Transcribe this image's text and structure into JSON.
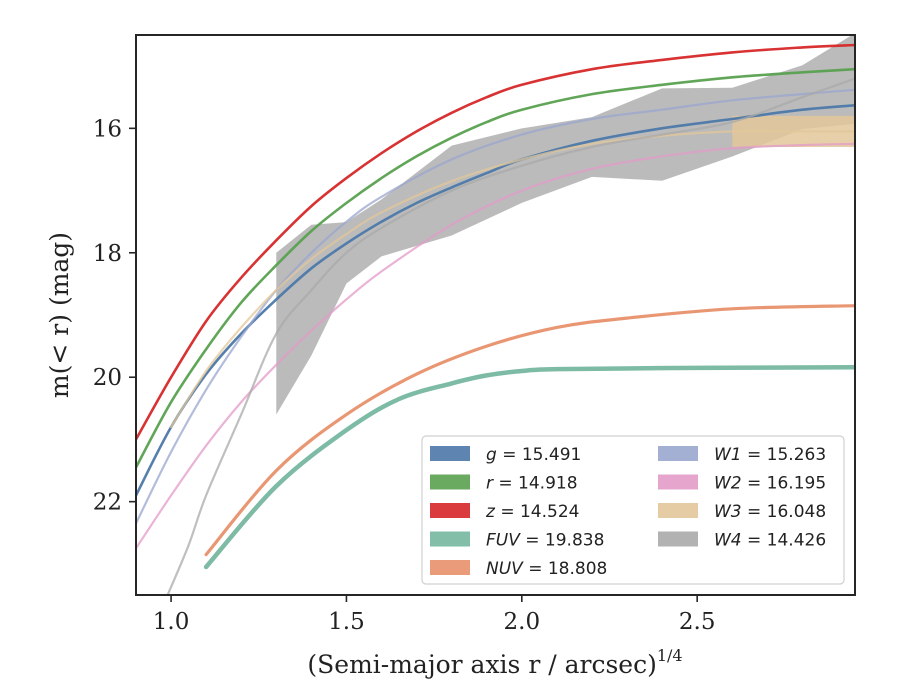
{
  "chart_data": {
    "type": "line",
    "xlabel": "(Semi-major axis r / arcsec)",
    "xlabel_superscript": "1/4",
    "ylabel": "m(< r) (mag)",
    "xlim": [
      0.9,
      2.95
    ],
    "ylim": [
      23.5,
      14.5
    ],
    "y_inverted": true,
    "xticks": [
      {
        "value": 1.0,
        "label": "1.0"
      },
      {
        "value": 1.5,
        "label": "1.5"
      },
      {
        "value": 2.0,
        "label": "2.0"
      },
      {
        "value": 2.5,
        "label": "2.5"
      }
    ],
    "yticks": [
      {
        "value": 16,
        "label": "16"
      },
      {
        "value": 18,
        "label": "18"
      },
      {
        "value": 20,
        "label": "20"
      },
      {
        "value": 22,
        "label": "22"
      }
    ],
    "grid": false,
    "legend_position": "lower-right",
    "series": [
      {
        "key": "g",
        "label_var": "g",
        "label_val": "15.491",
        "color": "#4c78a8",
        "x": [
          0.9,
          1.0,
          1.1,
          1.2,
          1.3,
          1.4,
          1.5,
          1.6,
          1.7,
          1.8,
          1.9,
          2.0,
          2.2,
          2.4,
          2.6,
          2.8,
          2.95
        ],
        "y": [
          21.9,
          20.8,
          19.95,
          19.3,
          18.75,
          18.25,
          17.85,
          17.5,
          17.2,
          16.95,
          16.72,
          16.5,
          16.2,
          16.0,
          15.85,
          15.7,
          15.63
        ]
      },
      {
        "key": "r",
        "label_var": "r",
        "label_val": "14.918",
        "color": "#59a14f",
        "x": [
          0.9,
          1.0,
          1.1,
          1.2,
          1.3,
          1.4,
          1.5,
          1.6,
          1.7,
          1.8,
          1.9,
          2.0,
          2.2,
          2.4,
          2.6,
          2.8,
          2.95
        ],
        "y": [
          21.45,
          20.4,
          19.55,
          18.8,
          18.2,
          17.65,
          17.2,
          16.8,
          16.45,
          16.15,
          15.9,
          15.7,
          15.45,
          15.3,
          15.18,
          15.1,
          15.05
        ]
      },
      {
        "key": "z",
        "label_var": "z",
        "label_val": "14.524",
        "color": "#d62728",
        "x": [
          0.9,
          1.0,
          1.1,
          1.2,
          1.3,
          1.4,
          1.5,
          1.6,
          1.7,
          1.8,
          1.9,
          2.0,
          2.2,
          2.4,
          2.6,
          2.8,
          2.95
        ],
        "y": [
          21.0,
          20.0,
          19.1,
          18.4,
          17.8,
          17.25,
          16.8,
          16.4,
          16.05,
          15.75,
          15.5,
          15.3,
          15.05,
          14.9,
          14.78,
          14.7,
          14.66
        ]
      },
      {
        "key": "FUV",
        "label_var": "FUV",
        "label_val": "19.838",
        "color": "#76b7a0",
        "x": [
          1.1,
          1.3,
          1.5,
          1.65,
          1.8,
          1.9,
          2.0,
          2.1,
          2.5,
          2.95
        ],
        "y": [
          23.05,
          21.75,
          20.85,
          20.35,
          20.1,
          19.97,
          19.9,
          19.87,
          19.85,
          19.84
        ]
      },
      {
        "key": "NUV",
        "label_var": "NUV",
        "label_val": "18.808",
        "color": "#e8906c",
        "x": [
          1.1,
          1.3,
          1.5,
          1.7,
          1.9,
          2.1,
          2.3,
          2.6,
          2.95
        ],
        "y": [
          22.85,
          21.5,
          20.6,
          19.95,
          19.5,
          19.2,
          19.05,
          18.9,
          18.85
        ]
      },
      {
        "key": "W1",
        "label_var": "W1",
        "label_val": "15.263",
        "color": "#9aa6cf",
        "x": [
          0.9,
          1.0,
          1.1,
          1.2,
          1.3,
          1.4,
          1.5,
          1.6,
          1.8,
          2.0,
          2.2,
          2.4,
          2.6,
          2.8,
          2.95
        ],
        "y": [
          22.35,
          21.2,
          20.2,
          19.35,
          18.6,
          18.0,
          17.5,
          17.1,
          16.5,
          16.1,
          15.85,
          15.7,
          15.55,
          15.45,
          15.38
        ]
      },
      {
        "key": "W2",
        "label_var": "W2",
        "label_val": "16.195",
        "color": "#e39bc8",
        "x": [
          0.9,
          1.0,
          1.1,
          1.2,
          1.3,
          1.4,
          1.5,
          1.6,
          1.8,
          2.0,
          2.2,
          2.4,
          2.6,
          2.8,
          2.95
        ],
        "y": [
          22.75,
          21.9,
          21.1,
          20.4,
          19.8,
          19.25,
          18.75,
          18.3,
          17.55,
          17.0,
          16.65,
          16.45,
          16.32,
          16.27,
          16.25
        ]
      },
      {
        "key": "W3",
        "label_var": "W3",
        "label_val": "16.048",
        "color": "#e3c79a",
        "x": [
          1.0,
          1.1,
          1.2,
          1.3,
          1.4,
          1.5,
          1.6,
          1.8,
          2.0,
          2.2,
          2.4,
          2.6,
          2.8,
          2.95
        ],
        "y": [
          20.8,
          19.9,
          19.2,
          18.6,
          18.1,
          17.7,
          17.35,
          16.85,
          16.5,
          16.25,
          16.12,
          16.05,
          16.05,
          16.05
        ]
      },
      {
        "key": "W4",
        "label_var": "W4",
        "label_val": "14.426",
        "color": "#aaaaaa",
        "x": [
          0.99,
          1.05,
          1.1,
          1.2,
          1.3,
          1.4,
          1.5,
          1.6,
          1.8,
          2.0,
          2.2,
          2.4,
          2.6,
          2.8,
          2.95
        ],
        "y": [
          23.5,
          22.7,
          21.9,
          20.6,
          19.3,
          18.6,
          18.0,
          17.6,
          17.0,
          16.6,
          16.3,
          16.1,
          15.9,
          15.5,
          15.2
        ]
      }
    ]
  }
}
